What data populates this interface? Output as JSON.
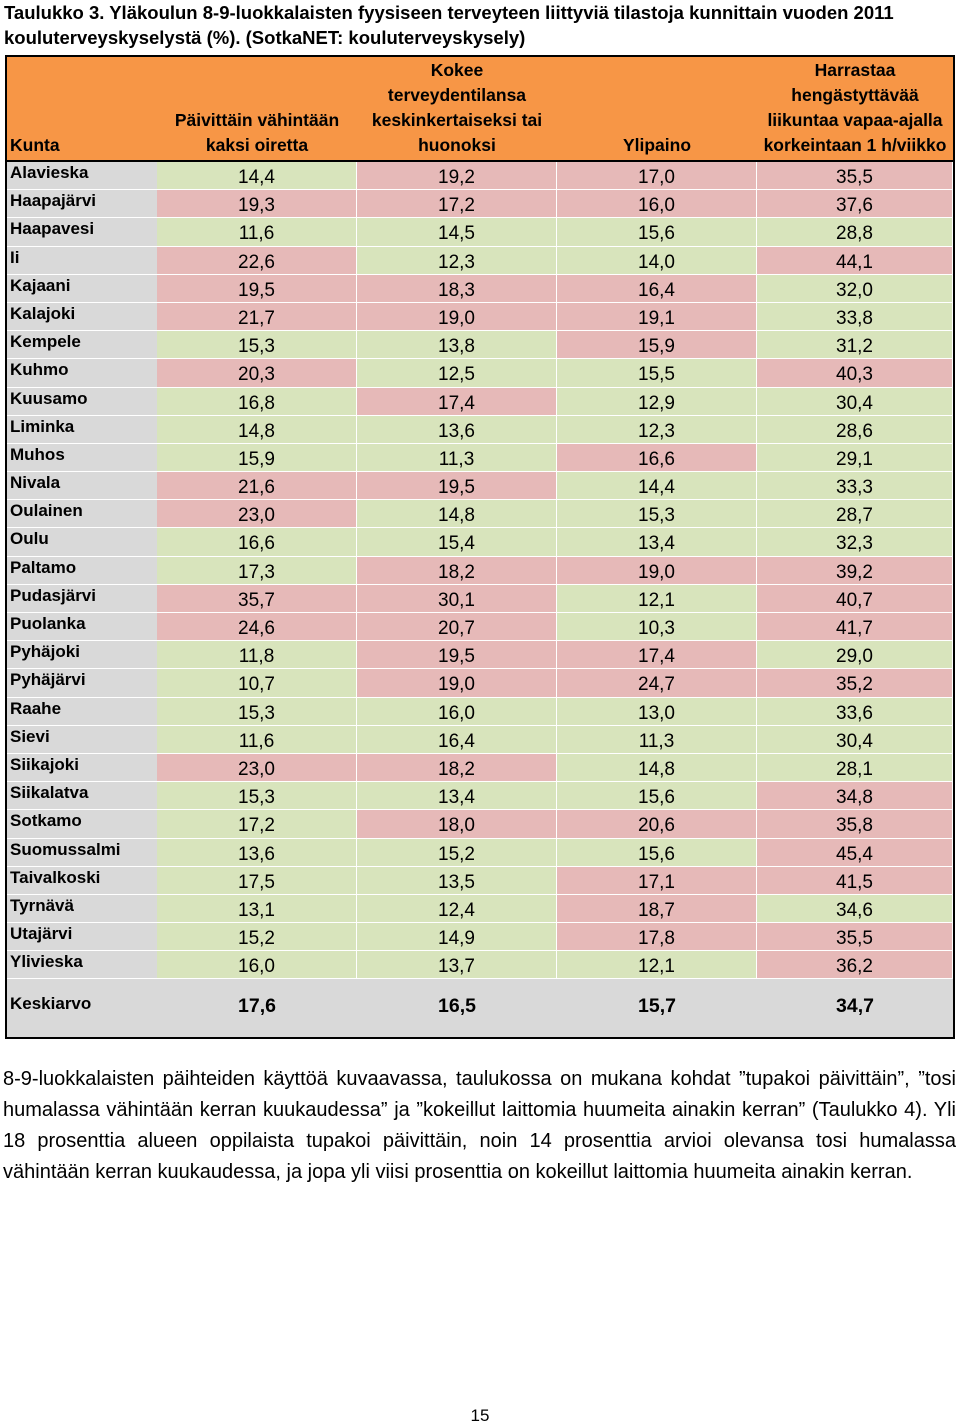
{
  "caption": "Taulukko 3. Yläkoulun 8-9-luokkalaisten fyysiseen terveyteen liittyviä tilastoja kunnittain vuoden 2011 kouluterveyskyselystä (%). (SotkaNET: kouluterveyskysely)",
  "table": {
    "headers": [
      "Kunta",
      "Päivittäin vähintään\nkaksi oiretta",
      "Kokee\nterveydentilansa\nkeskinkertaiseksi tai\nhuonoksi",
      "Ylipaino",
      "Harrastaa\nhengästyttävää\nliikuntaa vapaa-ajalla\nkorkeintaan 1 h/viikko"
    ],
    "rows": [
      {
        "name": "Alavieska",
        "values": [
          "14,4",
          "19,2",
          "17,0",
          "35,5"
        ],
        "colors": [
          "g",
          "p",
          "p",
          "p"
        ]
      },
      {
        "name": "Haapajärvi",
        "values": [
          "19,3",
          "17,2",
          "16,0",
          "37,6"
        ],
        "colors": [
          "p",
          "p",
          "p",
          "p"
        ]
      },
      {
        "name": "Haapavesi",
        "values": [
          "11,6",
          "14,5",
          "15,6",
          "28,8"
        ],
        "colors": [
          "g",
          "g",
          "g",
          "g"
        ]
      },
      {
        "name": "Ii",
        "values": [
          "22,6",
          "12,3",
          "14,0",
          "44,1"
        ],
        "colors": [
          "p",
          "g",
          "g",
          "p"
        ]
      },
      {
        "name": "Kajaani",
        "values": [
          "19,5",
          "18,3",
          "16,4",
          "32,0"
        ],
        "colors": [
          "p",
          "p",
          "p",
          "g"
        ]
      },
      {
        "name": "Kalajoki",
        "values": [
          "21,7",
          "19,0",
          "19,1",
          "33,8"
        ],
        "colors": [
          "p",
          "p",
          "p",
          "g"
        ]
      },
      {
        "name": "Kempele",
        "values": [
          "15,3",
          "13,8",
          "15,9",
          "31,2"
        ],
        "colors": [
          "g",
          "g",
          "p",
          "g"
        ]
      },
      {
        "name": "Kuhmo",
        "values": [
          "20,3",
          "12,5",
          "15,5",
          "40,3"
        ],
        "colors": [
          "p",
          "g",
          "g",
          "p"
        ]
      },
      {
        "name": "Kuusamo",
        "values": [
          "16,8",
          "17,4",
          "12,9",
          "30,4"
        ],
        "colors": [
          "g",
          "p",
          "g",
          "g"
        ]
      },
      {
        "name": "Liminka",
        "values": [
          "14,8",
          "13,6",
          "12,3",
          "28,6"
        ],
        "colors": [
          "g",
          "g",
          "g",
          "g"
        ]
      },
      {
        "name": "Muhos",
        "values": [
          "15,9",
          "11,3",
          "16,6",
          "29,1"
        ],
        "colors": [
          "g",
          "g",
          "p",
          "g"
        ]
      },
      {
        "name": "Nivala",
        "values": [
          "21,6",
          "19,5",
          "14,4",
          "33,3"
        ],
        "colors": [
          "p",
          "p",
          "g",
          "g"
        ]
      },
      {
        "name": "Oulainen",
        "values": [
          "23,0",
          "14,8",
          "15,3",
          "28,7"
        ],
        "colors": [
          "p",
          "g",
          "g",
          "g"
        ]
      },
      {
        "name": "Oulu",
        "values": [
          "16,6",
          "15,4",
          "13,4",
          "32,3"
        ],
        "colors": [
          "g",
          "g",
          "g",
          "g"
        ]
      },
      {
        "name": "Paltamo",
        "values": [
          "17,3",
          "18,2",
          "19,0",
          "39,2"
        ],
        "colors": [
          "g",
          "p",
          "p",
          "p"
        ]
      },
      {
        "name": "Pudasjärvi",
        "values": [
          "35,7",
          "30,1",
          "12,1",
          "40,7"
        ],
        "colors": [
          "p",
          "p",
          "g",
          "p"
        ]
      },
      {
        "name": "Puolanka",
        "values": [
          "24,6",
          "20,7",
          "10,3",
          "41,7"
        ],
        "colors": [
          "p",
          "p",
          "g",
          "p"
        ]
      },
      {
        "name": "Pyhäjoki",
        "values": [
          "11,8",
          "19,5",
          "17,4",
          "29,0"
        ],
        "colors": [
          "g",
          "p",
          "p",
          "g"
        ]
      },
      {
        "name": "Pyhäjärvi",
        "values": [
          "10,7",
          "19,0",
          "24,7",
          "35,2"
        ],
        "colors": [
          "g",
          "p",
          "p",
          "p"
        ]
      },
      {
        "name": "Raahe",
        "values": [
          "15,3",
          "16,0",
          "13,0",
          "33,6"
        ],
        "colors": [
          "g",
          "g",
          "g",
          "g"
        ]
      },
      {
        "name": "Sievi",
        "values": [
          "11,6",
          "16,4",
          "11,3",
          "30,4"
        ],
        "colors": [
          "g",
          "g",
          "g",
          "g"
        ]
      },
      {
        "name": "Siikajoki",
        "values": [
          "23,0",
          "18,2",
          "14,8",
          "28,1"
        ],
        "colors": [
          "p",
          "p",
          "g",
          "g"
        ]
      },
      {
        "name": "Siikalatva",
        "values": [
          "15,3",
          "13,4",
          "15,6",
          "34,8"
        ],
        "colors": [
          "g",
          "g",
          "g",
          "p"
        ]
      },
      {
        "name": "Sotkamo",
        "values": [
          "17,2",
          "18,0",
          "20,6",
          "35,8"
        ],
        "colors": [
          "g",
          "p",
          "p",
          "p"
        ]
      },
      {
        "name": "Suomussalmi",
        "values": [
          "13,6",
          "15,2",
          "15,6",
          "45,4"
        ],
        "colors": [
          "g",
          "g",
          "g",
          "p"
        ]
      },
      {
        "name": "Taivalkoski",
        "values": [
          "17,5",
          "13,5",
          "17,1",
          "41,5"
        ],
        "colors": [
          "g",
          "g",
          "p",
          "p"
        ]
      },
      {
        "name": "Tyrnävä",
        "values": [
          "13,1",
          "12,4",
          "18,7",
          "34,6"
        ],
        "colors": [
          "g",
          "g",
          "p",
          "g"
        ]
      },
      {
        "name": "Utajärvi",
        "values": [
          "15,2",
          "14,9",
          "17,8",
          "35,5"
        ],
        "colors": [
          "g",
          "g",
          "p",
          "p"
        ]
      },
      {
        "name": "Ylivieska",
        "values": [
          "16,0",
          "13,7",
          "12,1",
          "36,2"
        ],
        "colors": [
          "g",
          "g",
          "g",
          "p"
        ]
      }
    ],
    "average": {
      "name": "Keskiarvo",
      "values": [
        "17,6",
        "16,5",
        "15,7",
        "34,7"
      ]
    }
  },
  "colors": {
    "header": "#f79646",
    "green": "#d8e4bc",
    "pink": "#e6b9b8",
    "gray": "#d9d9d9"
  },
  "paragraph": "8-9-luokkalaisten päihteiden käyttöä kuvaavassa, taulukossa on mukana kohdat ”tupakoi päivittäin”, ”tosi humalassa vähintään kerran kuukaudessa” ja ”kokeillut laittomia huumeita ainakin kerran” (Taulukko 4). Yli 18 prosenttia alueen oppilaista tupakoi päivittäin, noin 14 prosenttia arvioi olevansa tosi humalassa vähintään kerran kuukaudessa, ja jopa yli viisi prosenttia on kokeillut laittomia huumeita ainakin kerran.",
  "page_number": "15"
}
